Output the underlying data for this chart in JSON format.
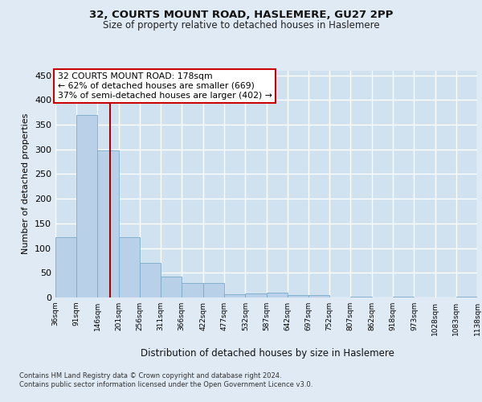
{
  "title1": "32, COURTS MOUNT ROAD, HASLEMERE, GU27 2PP",
  "title2": "Size of property relative to detached houses in Haslemere",
  "xlabel": "Distribution of detached houses by size in Haslemere",
  "ylabel": "Number of detached properties",
  "bar_values": [
    122,
    370,
    298,
    122,
    70,
    43,
    29,
    29,
    7,
    8,
    10,
    5,
    5,
    0,
    2,
    0,
    2,
    0,
    0,
    2
  ],
  "bin_edges": [
    36,
    91,
    146,
    201,
    256,
    311,
    366,
    422,
    477,
    532,
    587,
    642,
    697,
    752,
    807,
    862,
    918,
    973,
    1028,
    1083,
    1138
  ],
  "tick_labels": [
    "36sqm",
    "91sqm",
    "146sqm",
    "201sqm",
    "256sqm",
    "311sqm",
    "366sqm",
    "422sqm",
    "477sqm",
    "532sqm",
    "587sqm",
    "642sqm",
    "697sqm",
    "752sqm",
    "807sqm",
    "862sqm",
    "918sqm",
    "973sqm",
    "1028sqm",
    "1083sqm",
    "1138sqm"
  ],
  "bar_color": "#b8d0e8",
  "bar_edge_color": "#7aaac8",
  "bg_color": "#e0eaf4",
  "plot_bg_color": "#d0e2f0",
  "grid_color": "#ffffff",
  "vline_x": 178,
  "vline_color": "#aa0000",
  "annotation_lines": [
    "32 COURTS MOUNT ROAD: 178sqm",
    "← 62% of detached houses are smaller (669)",
    "37% of semi-detached houses are larger (402) →"
  ],
  "annotation_box_color": "#ffffff",
  "annotation_box_edge": "#cc0000",
  "ylim": [
    0,
    460
  ],
  "yticks": [
    0,
    50,
    100,
    150,
    200,
    250,
    300,
    350,
    400,
    450
  ],
  "footnote1": "Contains HM Land Registry data © Crown copyright and database right 2024.",
  "footnote2": "Contains public sector information licensed under the Open Government Licence v3.0."
}
